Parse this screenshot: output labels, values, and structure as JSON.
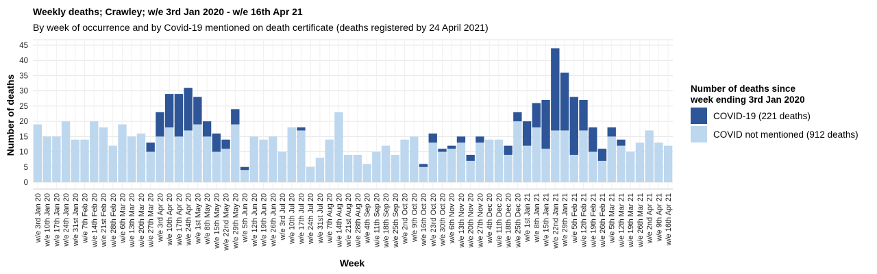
{
  "chart_data": {
    "type": "bar",
    "stacked": true,
    "title": "Weekly deaths; Crawley; w/e 3rd Jan 2020 - w/e 16th Apr 21",
    "subtitle": "By week of occurrence and by Covid-19 mentioned on death certificate (deaths registered by 24 April 2021)",
    "xlabel": "Week",
    "ylabel": "Number of deaths",
    "ylim": [
      0,
      45
    ],
    "yticks": [
      0,
      5,
      10,
      15,
      20,
      25,
      30,
      35,
      40,
      45
    ],
    "grid": true,
    "legend_position": "right",
    "legend_title": "Number of deaths since week ending 3rd Jan 2020",
    "legend_title_lines": [
      "Number of deaths since",
      "week ending 3rd Jan 2020"
    ],
    "categories": [
      "w/e 3rd Jan 20",
      "w/e 10th Jan 20",
      "w/e 17th Jan 20",
      "w/e 24th Jan 20",
      "w/e 31st Jan 20",
      "w/e 7th Feb 20",
      "w/e 14th Feb 20",
      "w/e 21st Feb 20",
      "w/e 28th Feb 20",
      "w/e 6th Mar 20",
      "w/e 13th Mar 20",
      "w/e 20th Mar 20",
      "w/e 27th Mar 20",
      "w/e 3rd Apr 20",
      "w/e 10th Apr 20",
      "w/e 17th Apr 20",
      "w/e 24th Apr 20",
      "w/e 1st May 20",
      "w/e 8th May 20",
      "w/e 15th May 20",
      "w/e 22nd May 20",
      "w/e 29th May 20",
      "w/e 5th Jun 20",
      "w/e 12th Jun 20",
      "w/e 19th Jun 20",
      "w/e 26th Jun 20",
      "w/e 3rd Jul 20",
      "w/e 10th Jul 20",
      "w/e 17th Jul 20",
      "w/e 24th Jul 20",
      "w/e 31st Jul 20",
      "w/e 7th Aug 20",
      "w/e 14th Aug 20",
      "w/e 21st Aug 20",
      "w/e 28th Aug 20",
      "w/e 4th Sep 20",
      "w/e 11th Sep 20",
      "w/e 18th Sep 20",
      "w/e 25th Sep 20",
      "w/e 2nd Oct 20",
      "w/e 9th Oct 20",
      "w/e 16th Oct 20",
      "w/e 23rd Oct 20",
      "w/e 30th Oct 20",
      "w/e 6th Nov 20",
      "w/e 13th Nov 20",
      "w/e 20th Nov 20",
      "w/e 27th Nov 20",
      "w/e 4th Dec 20",
      "w/e 11th Dec 20",
      "w/e 18th Dec 20",
      "w/e 25th Dec 20",
      "w/e 1st Jan 21",
      "w/e 8th Jan 21",
      "w/e 15th Jan 21",
      "w/e 22nd Jan 21",
      "w/e 29th Jan 21",
      "w/e 5th Feb 21",
      "w/e 12th Feb 21",
      "w/e 19th Feb 21",
      "w/e 26th Feb 21",
      "w/e 5th Mar 21",
      "w/e 12th Mar 21",
      "w/e 19th Mar 21",
      "w/e 26th Mar 21",
      "w/e 2nd Apr 21",
      "w/e 9th Apr 21",
      "w/e 16th Apr 21"
    ],
    "series": [
      {
        "name": "COVID not mentioned (912 deaths)",
        "color": "#bdd7ee",
        "values": [
          19,
          15,
          15,
          20,
          14,
          14,
          20,
          18,
          12,
          19,
          15,
          16,
          10,
          15,
          18,
          15,
          17,
          19,
          15,
          10,
          11,
          19,
          4,
          15,
          14,
          15,
          10,
          18,
          17,
          5,
          8,
          14,
          23,
          9,
          9,
          6,
          10,
          12,
          9,
          14,
          15,
          5,
          13,
          10,
          11,
          13,
          7,
          13,
          14,
          14,
          9,
          20,
          12,
          18,
          11,
          17,
          17,
          9,
          17,
          10,
          7,
          15,
          12,
          10,
          13,
          17,
          13,
          12
        ]
      },
      {
        "name": "COVID-19 (221 deaths)",
        "color": "#2e5597",
        "values": [
          0,
          0,
          0,
          0,
          0,
          0,
          0,
          0,
          0,
          0,
          0,
          0,
          3,
          8,
          11,
          14,
          14,
          9,
          5,
          6,
          3,
          5,
          1,
          0,
          0,
          0,
          0,
          0,
          1,
          0,
          0,
          0,
          0,
          0,
          0,
          0,
          0,
          0,
          0,
          0,
          0,
          1,
          3,
          1,
          1,
          2,
          2,
          2,
          0,
          0,
          3,
          3,
          8,
          8,
          16,
          27,
          19,
          19,
          10,
          8,
          4,
          3,
          2,
          0,
          0,
          0,
          0,
          0
        ]
      }
    ],
    "legend_order": [
      1,
      0
    ]
  }
}
